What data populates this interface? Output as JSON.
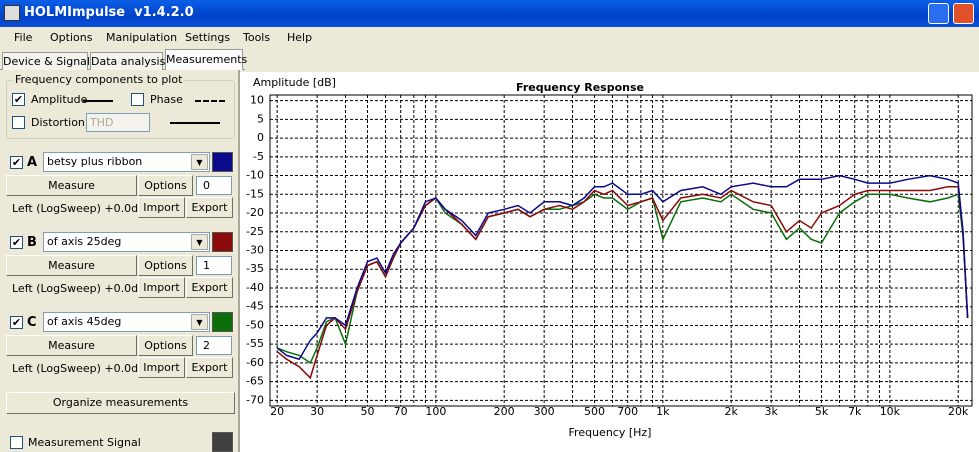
{
  "window": {
    "title": "HOLMImpulse  v1.4.2.0"
  },
  "menu": [
    "File",
    "Options",
    "Manipulation",
    "Settings",
    "Tools",
    "Help"
  ],
  "tabs": [
    "Device & Signal",
    "Data analysis",
    "Measurements"
  ],
  "components": {
    "title": "Frequency components to plot",
    "amplitude": {
      "label": "Amplitude",
      "checked": true
    },
    "phase": {
      "label": "Phase",
      "checked": false
    },
    "distortion": {
      "label": "Distortion",
      "checked": false
    },
    "distortion_type": "THD"
  },
  "measurements": [
    {
      "letter": "A",
      "name": "betsy plus ribbon",
      "checked": true,
      "color": "#0a0a8c",
      "measure": "Measure",
      "options": "Options",
      "index": 0,
      "channel": "Left (LogSweep) +0.0dB",
      "import": "Import",
      "export": "Export"
    },
    {
      "letter": "B",
      "name": "of axis 25deg",
      "checked": true,
      "color": "#8c0a0a",
      "measure": "Measure",
      "options": "Options",
      "index": 1,
      "channel": "Left (LogSweep) +0.0dB",
      "import": "Import",
      "export": "Export"
    },
    {
      "letter": "C",
      "name": "of axis 45deg",
      "checked": true,
      "color": "#0a6e0a",
      "measure": "Measure",
      "options": "Options",
      "index": 2,
      "channel": "Left (LogSweep) +0.0dB",
      "import": "Import",
      "export": "Export"
    }
  ],
  "organize": "Organize measurements",
  "signal": {
    "label": "Measurement Signal",
    "checked": false
  },
  "chart_data": {
    "type": "line",
    "title": "Frequency Response",
    "xlabel": "Frequency [Hz]",
    "ylabel": "Amplitude [dB]",
    "xscale": "log",
    "grid": true,
    "xlim": [
      18.6,
      23000
    ],
    "ylim": [
      -71.5,
      11.5
    ],
    "xticks": [
      20,
      30,
      50,
      70,
      100,
      200,
      300,
      500,
      700,
      {
        "value": 1000,
        "label": "1k"
      },
      {
        "value": 2000,
        "label": "2k"
      },
      {
        "value": 3000,
        "label": "3k"
      },
      {
        "value": 5000,
        "label": "5k"
      },
      {
        "value": 7000,
        "label": "7k"
      },
      {
        "value": 10000,
        "label": "10k"
      },
      {
        "value": 20000,
        "label": "20k"
      }
    ],
    "xminor": [
      40,
      60,
      80,
      90,
      400,
      600,
      800,
      900,
      4000,
      6000,
      8000,
      9000
    ],
    "yticks": [
      -70,
      -65,
      -60,
      -55,
      -50,
      -45,
      -40,
      -35,
      -30,
      -25,
      -20,
      -15,
      -10,
      -5,
      0,
      5,
      10
    ],
    "x": [
      20,
      22,
      25,
      28,
      30,
      33,
      36,
      40,
      45,
      50,
      55,
      60,
      65,
      70,
      80,
      90,
      100,
      110,
      130,
      150,
      170,
      200,
      230,
      260,
      300,
      350,
      400,
      450,
      500,
      550,
      600,
      700,
      800,
      900,
      1000,
      1200,
      1500,
      1800,
      2000,
      2500,
      3000,
      3500,
      4000,
      4500,
      5000,
      6000,
      7000,
      8000,
      10000,
      12000,
      15000,
      18000,
      20000,
      21000,
      22000
    ],
    "series": [
      {
        "color": "#0a6e0a",
        "values": [
          -56,
          -57,
          -58,
          -60,
          -56,
          -49,
          -48,
          -55,
          -41,
          -34,
          -33,
          -37,
          -32,
          -28,
          -24,
          -18,
          -16,
          -20,
          -23,
          -27,
          -21,
          -20,
          -19,
          -21,
          -19,
          -19,
          -18,
          -17,
          -15,
          -16,
          -16,
          -19,
          -17,
          -16,
          -27,
          -17,
          -16,
          -17,
          -15,
          -19,
          -20,
          -27,
          -24,
          -27,
          -28,
          -20,
          -17,
          -15,
          -15,
          -16,
          -17,
          -16,
          -15,
          -26,
          -48
        ]
      },
      {
        "color": "#8c0a0a",
        "values": [
          -57,
          -59,
          -61,
          -64,
          -58,
          -50,
          -48,
          -51,
          -41,
          -34,
          -33,
          -37,
          -32,
          -28,
          -24,
          -18,
          -16,
          -19,
          -23,
          -27,
          -21,
          -20,
          -19,
          -21,
          -19,
          -18,
          -19,
          -17,
          -14,
          -15,
          -14,
          -18,
          -17,
          -16,
          -22,
          -16,
          -15,
          -16,
          -14,
          -17,
          -18,
          -25,
          -22,
          -24,
          -20,
          -18,
          -15,
          -14,
          -14,
          -14,
          -14,
          -13,
          -13,
          -25,
          -48
        ]
      },
      {
        "color": "#0a0a8c",
        "values": [
          -56,
          -58,
          -59,
          -54,
          -52,
          -48,
          -48,
          -50,
          -40,
          -33,
          -32,
          -36,
          -31,
          -28,
          -24,
          -17,
          -16,
          -19,
          -22,
          -26,
          -20,
          -19,
          -18,
          -20,
          -17,
          -17,
          -18,
          -16,
          -13,
          -13,
          -12,
          -15,
          -15,
          -14,
          -17,
          -14,
          -13,
          -15,
          -13,
          -12,
          -13,
          -13,
          -11,
          -11,
          -11,
          -10,
          -11,
          -12,
          -12,
          -11,
          -10,
          -11,
          -12,
          -25,
          -48
        ]
      }
    ]
  }
}
